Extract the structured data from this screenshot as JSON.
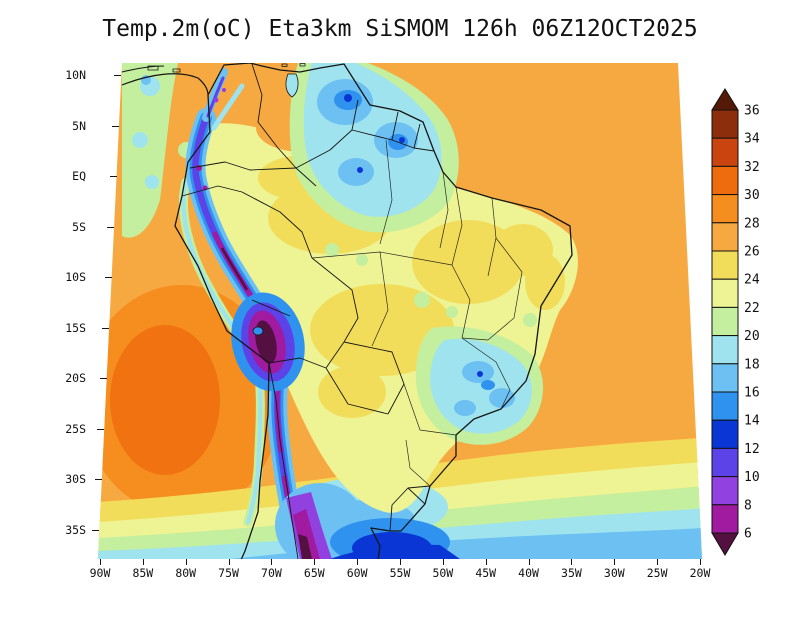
{
  "chart_data": {
    "type": "heatmap",
    "title": "Temp.2m(oC) Eta3km SiSMOM 126h 06Z12OCT2025",
    "variable": "Temp.2m",
    "units": "oC",
    "model": "Eta3km",
    "system": "SiSMOM",
    "forecast_hour": "126h",
    "init_time": "06Z12OCT2025",
    "region": "South America",
    "lat_ticks": [
      "10N",
      "5N",
      "EQ",
      "5S",
      "10S",
      "15S",
      "20S",
      "25S",
      "30S",
      "35S"
    ],
    "lon_ticks": [
      "90W",
      "85W",
      "80W",
      "75W",
      "70W",
      "65W",
      "60W",
      "55W",
      "50W",
      "45W",
      "40W",
      "35W",
      "30W",
      "25W",
      "20W"
    ],
    "colorbar": {
      "orientation": "vertical-right",
      "labels_top_to_bottom": [
        "36",
        "34",
        "32",
        "30",
        "28",
        "26",
        "24",
        "22",
        "20",
        "18",
        "16",
        "14",
        "12",
        "10",
        "8",
        "6"
      ],
      "colors_top_to_bottom": [
        "#541a07",
        "#8c2e0b",
        "#c9440e",
        "#ef6c0e",
        "#f68e1f",
        "#f7a941",
        "#f2dd5a",
        "#eef394",
        "#c4ef9e",
        "#9fe3ee",
        "#6cc1f2",
        "#2f92ef",
        "#0a36d6",
        "#5b43e8",
        "#9141e0",
        "#a01ba0",
        "#531040"
      ]
    },
    "field_summary": [
      "Warm 26-30 oC over the tropical Atlantic and northeastern oceanic area",
      "Mild 22-26 oC over most of interior Brazil",
      "Cool 16-22 oC pockets over the northern Amazon / Guiana shield and southeastern Brazil",
      "Coldest values below 8 oC along the Andes cordillera and far southern Chile/Argentina"
    ]
  }
}
